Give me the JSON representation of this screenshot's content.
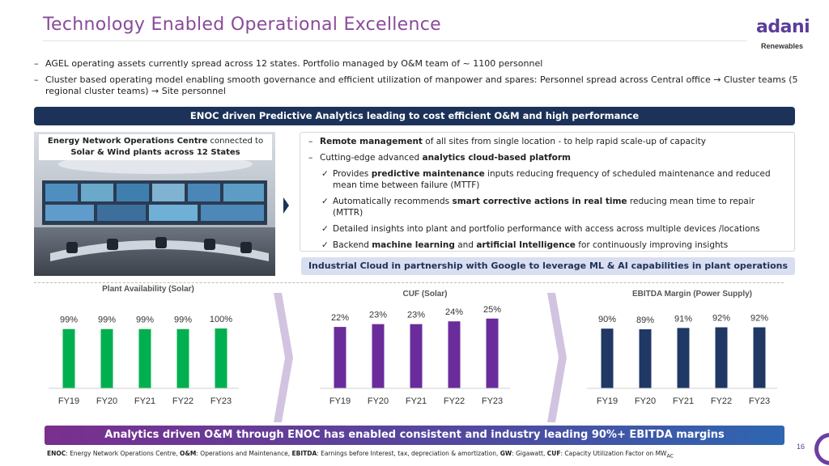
{
  "header": {
    "title": "Technology Enabled Operational Excellence",
    "logo_word": "adani",
    "logo_sub": "Renewables"
  },
  "bullets": [
    "AGEL operating assets currently spread across 12 states. Portfolio managed by O&M team of ~ 1100 personnel",
    "Cluster based operating model enabling smooth governance and efficient utilization of manpower and spares: Personnel spread across Central office → Cluster teams (5 regional cluster teams) → Site personnel"
  ],
  "enoc_band": "ENOC driven Predictive Analytics leading to cost efficient O&M and high performance",
  "photo_caption": {
    "bold": "Energy Network Operations Centre",
    "rest": " connected to",
    "line2": "Solar & Wind plants across 12 States"
  },
  "details": {
    "line1_bold": "Remote management",
    "line1_rest": " of all sites from single location - to help rapid scale-up of capacity",
    "line2_pre": "Cutting-edge advanced ",
    "line2_bold": "analytics cloud-based platform",
    "sub1_pre": "Provides ",
    "sub1_bold": "predictive maintenance",
    "sub1_rest": " inputs reducing frequency of scheduled maintenance and reduced mean time between failure (MTTF)",
    "sub2_pre": "Automatically recommends ",
    "sub2_bold": "smart corrective actions in real time",
    "sub2_rest": " reducing mean time to repair  (MTTR)",
    "sub3": "Detailed insights into plant and portfolio performance with access across multiple devices /locations",
    "sub4_pre": "Backend ",
    "sub4_bold1": "machine learning",
    "sub4_mid": " and ",
    "sub4_bold2": "artificial Intelligence",
    "sub4_rest": " for continuously improving insights"
  },
  "cloud_band": "Industrial Cloud in partnership with Google to leverage ML & AI capabilities in plant operations",
  "bottom_band": "Analytics driven O&M through ENOC has enabled consistent and industry leading 90%+ EBITDA margins",
  "footnote": {
    "enoc_key": "ENOC",
    "enoc_val": ": Energy Network Operations Centre, ",
    "om_key": "O&M",
    "om_val": ": Operations and Maintenance,  ",
    "ebitda_key": "EBITDA",
    "ebitda_val": ": Earnings before Interest, tax, depreciation & amortization, ",
    "gw_key": "GW",
    "gw_val": ": Gigawatt, ",
    "cuf_key": "CUF",
    "cuf_val": ": Capacity Utilization Factor on MW",
    "cuf_sub": "AC"
  },
  "page_number": "16",
  "colors": {
    "title": "#8a4a9b",
    "navy": "#1c3258",
    "solar_avail": "#00b050",
    "cuf": "#6a2c9b",
    "ebitda": "#1f3864",
    "chevron": "#d2c4e0"
  },
  "chart_data": [
    {
      "type": "bar",
      "title": "Plant Availability (Solar)",
      "categories": [
        "FY19",
        "FY20",
        "FY21",
        "FY22",
        "FY23"
      ],
      "values": [
        99,
        99,
        99,
        99,
        100
      ],
      "labels": [
        "99%",
        "99%",
        "99%",
        "99%",
        "100%"
      ],
      "unit": "%",
      "color": "#00b050",
      "ylim": [
        0,
        100
      ]
    },
    {
      "type": "bar",
      "title": "CUF (Solar)",
      "categories": [
        "FY19",
        "FY20",
        "FY21",
        "FY22",
        "FY23"
      ],
      "values": [
        22,
        23,
        23,
        24,
        25
      ],
      "labels": [
        "22%",
        "23%",
        "23%",
        "24%",
        "25%"
      ],
      "unit": "%",
      "color": "#6a2c9b",
      "ylim": [
        0,
        25
      ]
    },
    {
      "type": "bar",
      "title": "EBITDA Margin (Power Supply)",
      "categories": [
        "FY19",
        "FY20",
        "FY21",
        "FY22",
        "FY23"
      ],
      "values": [
        90,
        89,
        91,
        92,
        92
      ],
      "labels": [
        "90%",
        "89%",
        "91%",
        "92%",
        "92%"
      ],
      "unit": "%",
      "color": "#1f3864",
      "ylim": [
        0,
        92
      ]
    }
  ]
}
